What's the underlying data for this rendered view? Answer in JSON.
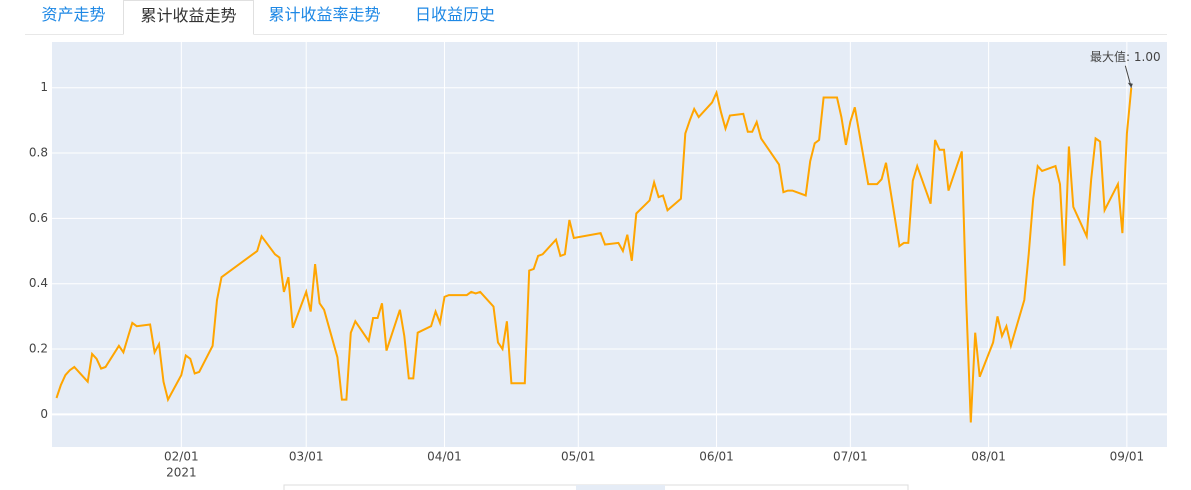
{
  "tabs": [
    "资产走势",
    "累计收益走势",
    "累计收益率走势",
    "日收益历史"
  ],
  "chart_data": {
    "type": "line",
    "color": "#ffa500",
    "grid": true,
    "annotation": "最大值: 1.00",
    "x": [
      "2021-01-04",
      "2021-01-05",
      "2021-01-06",
      "2021-01-07",
      "2021-01-08",
      "2021-01-11",
      "2021-01-12",
      "2021-01-13",
      "2021-01-14",
      "2021-01-15",
      "2021-01-18",
      "2021-01-19",
      "2021-01-20",
      "2021-01-21",
      "2021-01-22",
      "2021-01-25",
      "2021-01-26",
      "2021-01-27",
      "2021-01-28",
      "2021-01-29",
      "2021-02-01",
      "2021-02-02",
      "2021-02-03",
      "2021-02-04",
      "2021-02-05",
      "2021-02-08",
      "2021-02-09",
      "2021-02-10",
      "2021-02-18",
      "2021-02-19",
      "2021-02-22",
      "2021-02-23",
      "2021-02-24",
      "2021-02-25",
      "2021-02-26",
      "2021-03-01",
      "2021-03-02",
      "2021-03-03",
      "2021-03-04",
      "2021-03-05",
      "2021-03-08",
      "2021-03-09",
      "2021-03-10",
      "2021-03-11",
      "2021-03-12",
      "2021-03-15",
      "2021-03-16",
      "2021-03-17",
      "2021-03-18",
      "2021-03-19",
      "2021-03-22",
      "2021-03-23",
      "2021-03-24",
      "2021-03-25",
      "2021-03-26",
      "2021-03-29",
      "2021-03-30",
      "2021-03-31",
      "2021-04-01",
      "2021-04-02",
      "2021-04-06",
      "2021-04-07",
      "2021-04-08",
      "2021-04-09",
      "2021-04-12",
      "2021-04-13",
      "2021-04-14",
      "2021-04-15",
      "2021-04-16",
      "2021-04-19",
      "2021-04-20",
      "2021-04-21",
      "2021-04-22",
      "2021-04-23",
      "2021-04-26",
      "2021-04-27",
      "2021-04-28",
      "2021-04-29",
      "2021-04-30",
      "2021-05-06",
      "2021-05-07",
      "2021-05-10",
      "2021-05-11",
      "2021-05-12",
      "2021-05-13",
      "2021-05-14",
      "2021-05-17",
      "2021-05-18",
      "2021-05-19",
      "2021-05-20",
      "2021-05-21",
      "2021-05-24",
      "2021-05-25",
      "2021-05-26",
      "2021-05-27",
      "2021-05-28",
      "2021-05-31",
      "2021-06-01",
      "2021-06-02",
      "2021-06-03",
      "2021-06-04",
      "2021-06-07",
      "2021-06-08",
      "2021-06-09",
      "2021-06-10",
      "2021-06-11",
      "2021-06-15",
      "2021-06-16",
      "2021-06-17",
      "2021-06-18",
      "2021-06-21",
      "2021-06-22",
      "2021-06-23",
      "2021-06-24",
      "2021-06-25",
      "2021-06-28",
      "2021-06-29",
      "2021-06-30",
      "2021-07-01",
      "2021-07-02",
      "2021-07-05",
      "2021-07-06",
      "2021-07-07",
      "2021-07-08",
      "2021-07-09",
      "2021-07-12",
      "2021-07-13",
      "2021-07-14",
      "2021-07-15",
      "2021-07-16",
      "2021-07-19",
      "2021-07-20",
      "2021-07-21",
      "2021-07-22",
      "2021-07-23",
      "2021-07-26",
      "2021-07-27",
      "2021-07-28",
      "2021-07-29",
      "2021-07-30",
      "2021-08-02",
      "2021-08-03",
      "2021-08-04",
      "2021-08-05",
      "2021-08-06",
      "2021-08-09",
      "2021-08-10",
      "2021-08-11",
      "2021-08-12",
      "2021-08-13",
      "2021-08-16",
      "2021-08-17",
      "2021-08-18",
      "2021-08-19",
      "2021-08-20",
      "2021-08-23",
      "2021-08-24",
      "2021-08-25",
      "2021-08-26",
      "2021-08-27",
      "2021-08-30",
      "2021-08-31",
      "2021-09-01",
      "2021-09-02"
    ],
    "values": [
      0.05,
      0.09,
      0.12,
      0.135,
      0.145,
      0.1,
      0.185,
      0.17,
      0.14,
      0.145,
      0.21,
      0.19,
      0.235,
      0.28,
      0.27,
      0.275,
      0.19,
      0.215,
      0.1,
      0.045,
      0.12,
      0.18,
      0.17,
      0.125,
      0.13,
      0.21,
      0.35,
      0.42,
      0.5,
      0.545,
      0.49,
      0.48,
      0.375,
      0.42,
      0.265,
      0.375,
      0.315,
      0.46,
      0.34,
      0.32,
      0.175,
      0.045,
      0.045,
      0.25,
      0.285,
      0.225,
      0.295,
      0.295,
      0.34,
      0.195,
      0.32,
      0.24,
      0.11,
      0.11,
      0.25,
      0.27,
      0.315,
      0.28,
      0.36,
      0.365,
      0.365,
      0.375,
      0.37,
      0.375,
      0.33,
      0.22,
      0.2,
      0.285,
      0.095,
      0.095,
      0.44,
      0.445,
      0.485,
      0.49,
      0.535,
      0.485,
      0.49,
      0.595,
      0.54,
      0.555,
      0.52,
      0.525,
      0.5,
      0.55,
      0.47,
      0.615,
      0.655,
      0.71,
      0.665,
      0.67,
      0.625,
      0.66,
      0.86,
      0.9,
      0.935,
      0.91,
      0.955,
      0.985,
      0.925,
      0.875,
      0.915,
      0.92,
      0.865,
      0.865,
      0.895,
      0.845,
      0.765,
      0.68,
      0.685,
      0.685,
      0.67,
      0.775,
      0.83,
      0.84,
      0.97,
      0.97,
      0.91,
      0.825,
      0.895,
      0.94,
      0.705,
      0.705,
      0.705,
      0.72,
      0.77,
      0.515,
      0.525,
      0.525,
      0.715,
      0.76,
      0.645,
      0.84,
      0.81,
      0.81,
      0.685,
      0.805,
      0.34,
      -0.025,
      0.25,
      0.115,
      0.22,
      0.3,
      0.24,
      0.27,
      0.21,
      0.35,
      0.49,
      0.66,
      0.76,
      0.745,
      0.76,
      0.705,
      0.455,
      0.82,
      0.635,
      0.545,
      0.72,
      0.845,
      0.835,
      0.625,
      0.705,
      0.555,
      0.86,
      1.0
    ],
    "xlim": [
      "2021-01-03",
      "2021-09-10"
    ],
    "xticks": [
      {
        "value": "2021-02-01",
        "label": "02/01"
      },
      {
        "value": "2021-03-01",
        "label": "03/01"
      },
      {
        "value": "2021-04-01",
        "label": "04/01"
      },
      {
        "value": "2021-05-01",
        "label": "05/01"
      },
      {
        "value": "2021-06-01",
        "label": "06/01"
      },
      {
        "value": "2021-07-01",
        "label": "07/01"
      },
      {
        "value": "2021-08-01",
        "label": "08/01"
      },
      {
        "value": "2021-09-01",
        "label": "09/01"
      }
    ],
    "x_year_label": "2021",
    "ylim": [
      -0.1,
      1.14
    ],
    "yticks": [
      0,
      0.2,
      0.4,
      0.6,
      0.8,
      1
    ]
  }
}
